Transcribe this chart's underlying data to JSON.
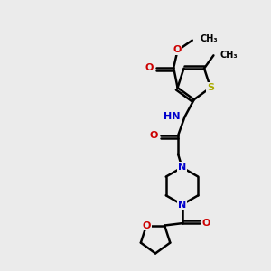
{
  "bg_color": "#ebebeb",
  "atom_colors": {
    "C": "#000000",
    "N": "#0000cc",
    "O": "#cc0000",
    "S": "#aaaa00",
    "H": "#666666"
  },
  "bond_color": "#000000",
  "bond_width": 1.8,
  "fig_size": [
    3.0,
    3.0
  ],
  "dpi": 100,
  "xlim": [
    0,
    10
  ],
  "ylim": [
    0,
    10
  ]
}
